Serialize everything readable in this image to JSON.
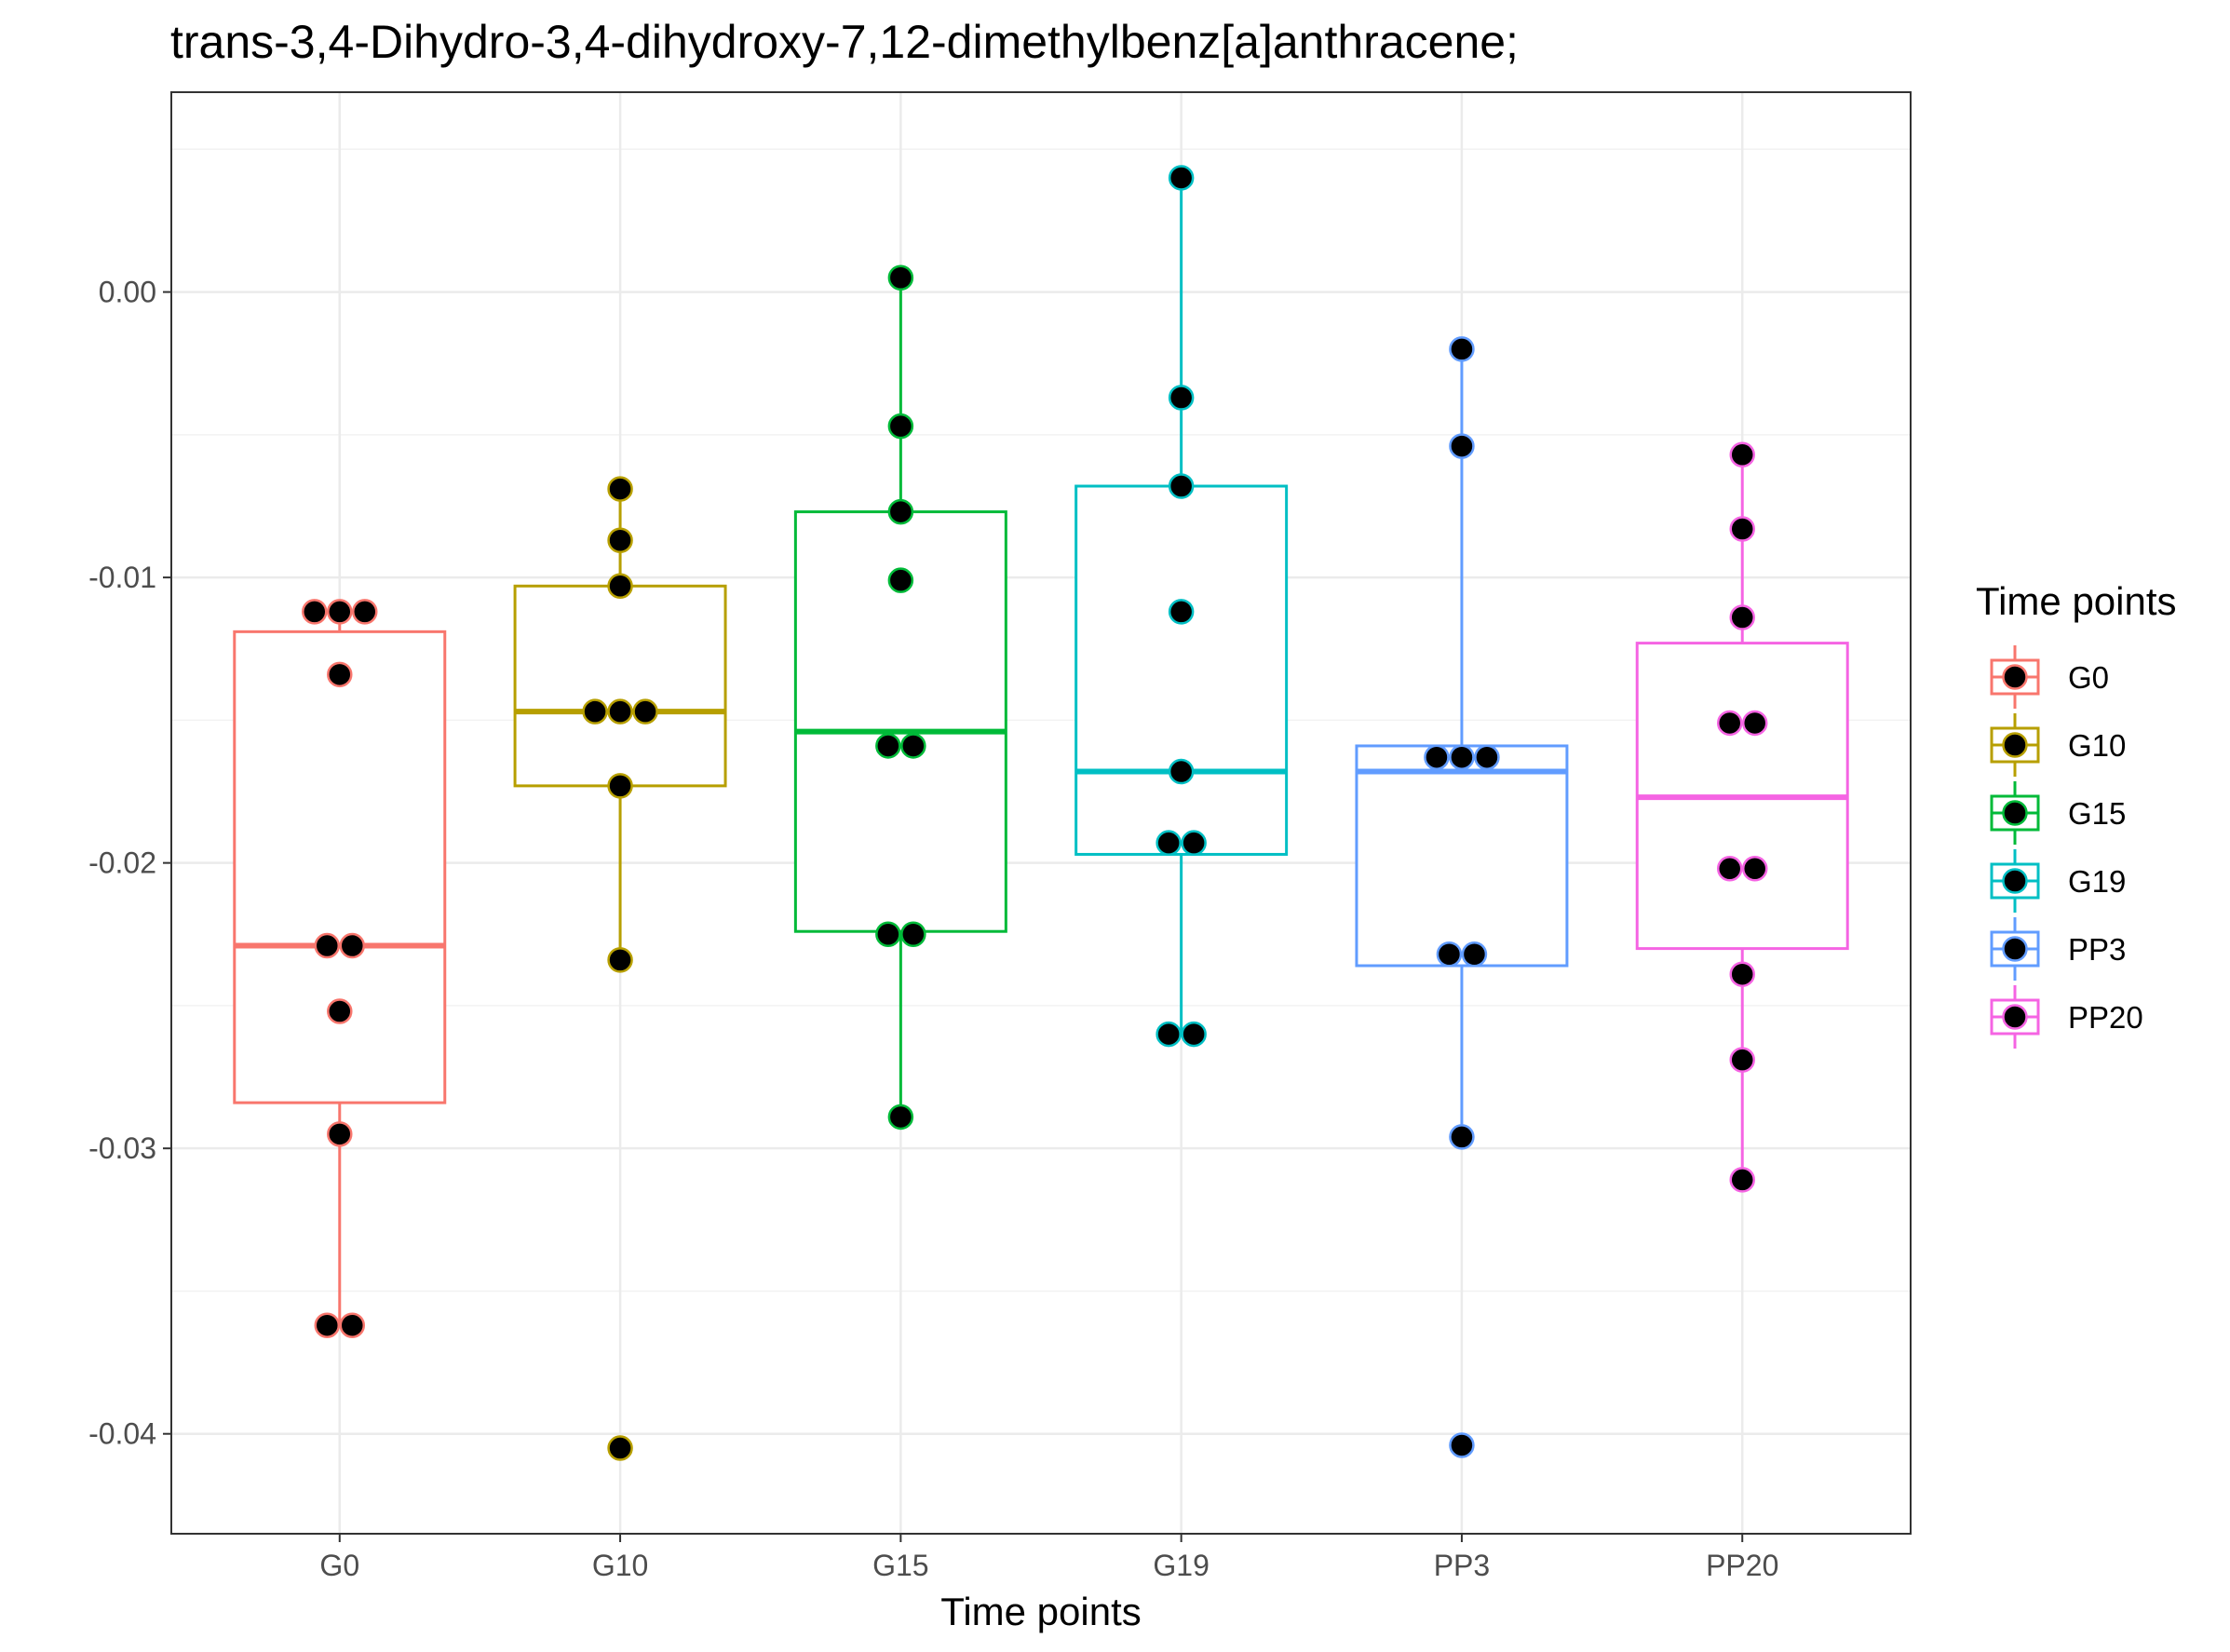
{
  "chart_data": {
    "type": "box",
    "title": "trans-3,4-Dihydro-3,4-dihydroxy-7,12-dimethylbenz[a]anthracene;",
    "xlabel": "Time points",
    "ylabel": "",
    "ylim": [
      -0.0435,
      0.007
    ],
    "yticks": [
      0.0,
      -0.01,
      -0.02,
      -0.03,
      -0.04
    ],
    "ytick_labels": [
      "0.00",
      "-0.01",
      "-0.02",
      "-0.03",
      "-0.04"
    ],
    "grid": true,
    "legend": {
      "title": "Time points",
      "position": "right"
    },
    "categories": [
      "G0",
      "G10",
      "G15",
      "G19",
      "PP3",
      "PP20"
    ],
    "series": [
      {
        "name": "G0",
        "color": "#F8766D",
        "box": {
          "q1": -0.0284,
          "median": -0.0229,
          "q3": -0.0119,
          "whisker_low": -0.0362,
          "whisker_high": -0.0112
        },
        "points": [
          -0.0112,
          -0.0112,
          -0.0112,
          -0.0134,
          -0.0229,
          -0.0229,
          -0.0252,
          -0.0295,
          -0.0362,
          -0.0362
        ]
      },
      {
        "name": "G10",
        "color": "#B79F00",
        "box": {
          "q1": -0.0173,
          "median": -0.0147,
          "q3": -0.0103,
          "whisker_low": -0.0234,
          "whisker_high": -0.0069
        },
        "points": [
          -0.0069,
          -0.0087,
          -0.0103,
          -0.0147,
          -0.0147,
          -0.0147,
          -0.0173,
          -0.0234,
          -0.0405
        ]
      },
      {
        "name": "G15",
        "color": "#00BA38",
        "box": {
          "q1": -0.0224,
          "median": -0.0154,
          "q3": -0.0077,
          "whisker_low": -0.0289,
          "whisker_high": 0.0005
        },
        "points": [
          0.0005,
          -0.0047,
          -0.0077,
          -0.0101,
          -0.0159,
          -0.0159,
          -0.0225,
          -0.0225,
          -0.0289
        ]
      },
      {
        "name": "G19",
        "color": "#00BFC4",
        "box": {
          "q1": -0.0197,
          "median": -0.0168,
          "q3": -0.0068,
          "whisker_low": -0.026,
          "whisker_high": 0.004
        },
        "points": [
          0.004,
          -0.0037,
          -0.0068,
          -0.0112,
          -0.0168,
          -0.0193,
          -0.0193,
          -0.026,
          -0.026
        ]
      },
      {
        "name": "PP3",
        "color": "#619CFF",
        "box": {
          "q1": -0.0236,
          "median": -0.0168,
          "q3": -0.0159,
          "whisker_low": -0.0296,
          "whisker_high": -0.002
        },
        "points": [
          -0.002,
          -0.0054,
          -0.0163,
          -0.0163,
          -0.0163,
          -0.0232,
          -0.0232,
          -0.0296,
          -0.0404
        ]
      },
      {
        "name": "PP20",
        "color": "#F564E3",
        "box": {
          "q1": -0.023,
          "median": -0.0177,
          "q3": -0.0123,
          "whisker_low": -0.0311,
          "whisker_high": -0.0057
        },
        "points": [
          -0.0057,
          -0.0083,
          -0.0114,
          -0.0151,
          -0.0151,
          -0.0202,
          -0.0202,
          -0.0239,
          -0.0269,
          -0.0311
        ]
      }
    ]
  }
}
